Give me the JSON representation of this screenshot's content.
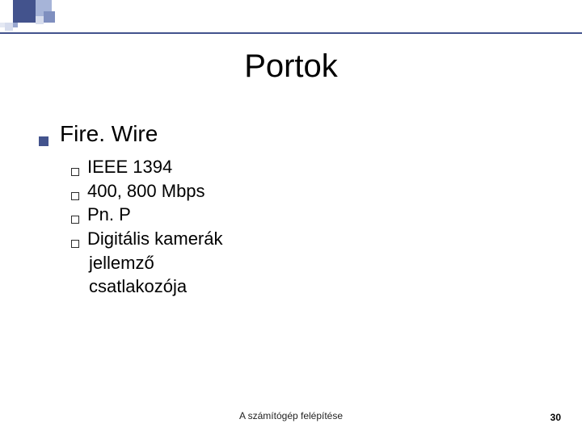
{
  "theme": {
    "accent": "#43538d",
    "background": "#ffffff",
    "text": "#000000"
  },
  "title": "Portok",
  "level1": {
    "label": "Fire. Wire"
  },
  "level2": [
    {
      "label": "IEEE 1394"
    },
    {
      "label": "400, 800 Mbps"
    },
    {
      "label": " Pn. P"
    },
    {
      "label": "Digitális kamerák",
      "cont": [
        "jellemző",
        "csatlakozója"
      ]
    }
  ],
  "footer": {
    "center": "A számítógép felépítése",
    "page": "30"
  }
}
